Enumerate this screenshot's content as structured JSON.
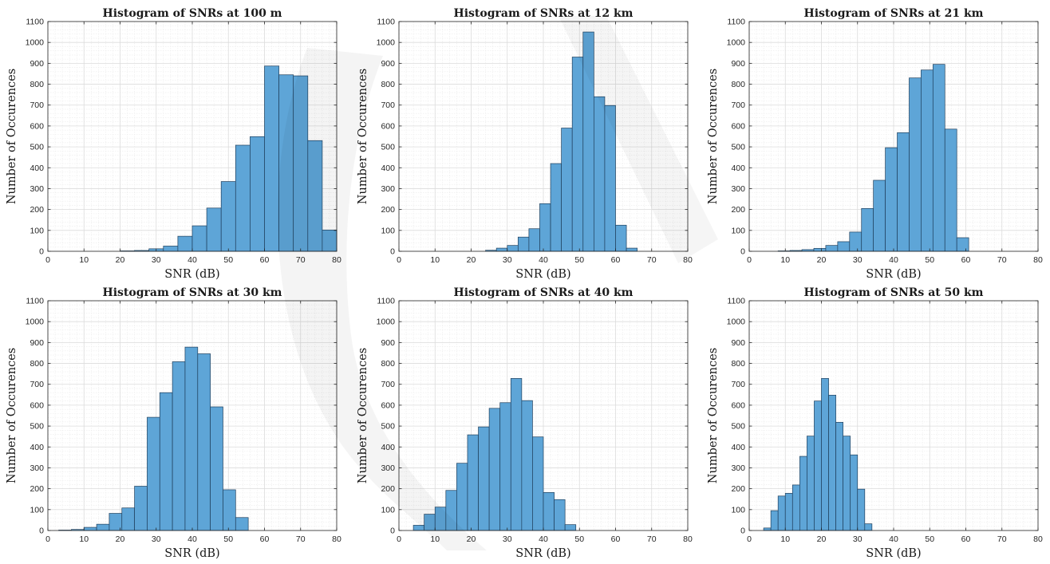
{
  "chart_data": [
    {
      "type": "bar",
      "title": "Histogram of SNRs at 100 m",
      "xlabel": "SNR (dB)",
      "ylabel": "Number of Occurences",
      "xlim": [
        0,
        80
      ],
      "ylim": [
        0,
        1100
      ],
      "xticks": [
        0,
        10,
        20,
        30,
        40,
        50,
        60,
        70,
        80
      ],
      "yticks": [
        0,
        100,
        200,
        300,
        400,
        500,
        600,
        700,
        800,
        900,
        1000,
        1100
      ],
      "grid": "major and minor",
      "bin_edges": [
        20,
        24,
        28,
        32,
        36,
        40,
        44,
        48,
        52,
        56,
        60,
        64,
        68,
        72,
        76,
        80
      ],
      "values": [
        2,
        4,
        12,
        25,
        72,
        122,
        207,
        334,
        508,
        549,
        887,
        845,
        840,
        530,
        102
      ]
    },
    {
      "type": "bar",
      "title": "Histogram of SNRs at 12 km",
      "xlabel": "SNR (dB)",
      "ylabel": "Number of Occurences",
      "xlim": [
        0,
        80
      ],
      "ylim": [
        0,
        1100
      ],
      "xticks": [
        0,
        10,
        20,
        30,
        40,
        50,
        60,
        70,
        80
      ],
      "yticks": [
        0,
        100,
        200,
        300,
        400,
        500,
        600,
        700,
        800,
        900,
        1000,
        1100
      ],
      "grid": "major and minor",
      "bin_edges": [
        24,
        27,
        30,
        33,
        36,
        39,
        42,
        45,
        48,
        51,
        54,
        57,
        60,
        63,
        66,
        69,
        72
      ],
      "values": [
        5,
        15,
        28,
        68,
        108,
        228,
        420,
        590,
        930,
        1050,
        740,
        698,
        125,
        15,
        0,
        0
      ]
    },
    {
      "type": "bar",
      "title": "Histogram of SNRs at 21 km",
      "xlabel": "SNR (dB)",
      "ylabel": "Number of Occurences",
      "xlim": [
        0,
        80
      ],
      "ylim": [
        0,
        1100
      ],
      "xticks": [
        0,
        10,
        20,
        30,
        40,
        50,
        60,
        70,
        80
      ],
      "yticks": [
        0,
        100,
        200,
        300,
        400,
        500,
        600,
        700,
        800,
        900,
        1000,
        1100
      ],
      "grid": "major and minor",
      "bin_edges": [
        8,
        11.3,
        14.6,
        17.9,
        21.2,
        24.5,
        27.8,
        31.1,
        34.4,
        37.7,
        41,
        44.3,
        47.6,
        50.9,
        54.2,
        57.5,
        60.8
      ],
      "values": [
        2,
        4,
        8,
        14,
        28,
        46,
        92,
        205,
        340,
        496,
        568,
        830,
        868,
        895,
        585,
        65
      ]
    },
    {
      "type": "bar",
      "title": "Histogram of SNRs at 30 km",
      "xlabel": "SNR (dB)",
      "ylabel": "Number of Occurences",
      "xlim": [
        0,
        80
      ],
      "ylim": [
        0,
        1100
      ],
      "xticks": [
        0,
        10,
        20,
        30,
        40,
        50,
        60,
        70,
        80
      ],
      "yticks": [
        0,
        100,
        200,
        300,
        400,
        500,
        600,
        700,
        800,
        900,
        1000,
        1100
      ],
      "grid": "major and minor",
      "bin_edges": [
        3,
        6.5,
        10,
        13.5,
        17,
        20.5,
        24,
        27.5,
        31,
        34.5,
        38,
        41.5,
        45,
        48.5,
        52,
        55.5
      ],
      "values": [
        2,
        5,
        15,
        30,
        82,
        108,
        212,
        542,
        660,
        808,
        878,
        846,
        592,
        195,
        62
      ]
    },
    {
      "type": "bar",
      "title": "Histogram of SNRs at 40 km",
      "xlabel": "SNR (dB)",
      "ylabel": "Number of Occurences",
      "xlim": [
        0,
        80
      ],
      "ylim": [
        0,
        1100
      ],
      "xticks": [
        0,
        10,
        20,
        30,
        40,
        50,
        60,
        70,
        80
      ],
      "yticks": [
        0,
        100,
        200,
        300,
        400,
        500,
        600,
        700,
        800,
        900,
        1000,
        1100
      ],
      "grid": "major and minor",
      "bin_edges": [
        4,
        7,
        10,
        13,
        16,
        19,
        22,
        25,
        28,
        31,
        34,
        37,
        40,
        43,
        46,
        49,
        52
      ],
      "values": [
        25,
        78,
        112,
        192,
        322,
        458,
        496,
        585,
        612,
        728,
        622,
        448,
        182,
        148,
        28,
        0
      ]
    },
    {
      "type": "bar",
      "title": "Histogram of SNRs at 50 km",
      "xlabel": "SNR (dB)",
      "ylabel": "Number of Occurences",
      "xlim": [
        0,
        80
      ],
      "ylim": [
        0,
        1100
      ],
      "xticks": [
        0,
        10,
        20,
        30,
        40,
        50,
        60,
        70,
        80
      ],
      "yticks": [
        0,
        100,
        200,
        300,
        400,
        500,
        600,
        700,
        800,
        900,
        1000,
        1100
      ],
      "grid": "major and minor",
      "bin_edges": [
        4,
        6,
        8,
        10,
        12,
        14,
        16,
        18,
        20,
        22,
        24,
        26,
        28,
        30,
        32,
        34,
        36
      ],
      "values": [
        12,
        95,
        165,
        178,
        218,
        355,
        452,
        620,
        728,
        648,
        518,
        452,
        362,
        198,
        32,
        0
      ]
    }
  ],
  "colors": {
    "bar_fill": "#5ea5d7",
    "bar_edge": "#1f3f5c",
    "axis": "#262626",
    "major_grid": "#dcdcdc",
    "minor_grid": "#ececec",
    "watermark": "#ececec"
  }
}
